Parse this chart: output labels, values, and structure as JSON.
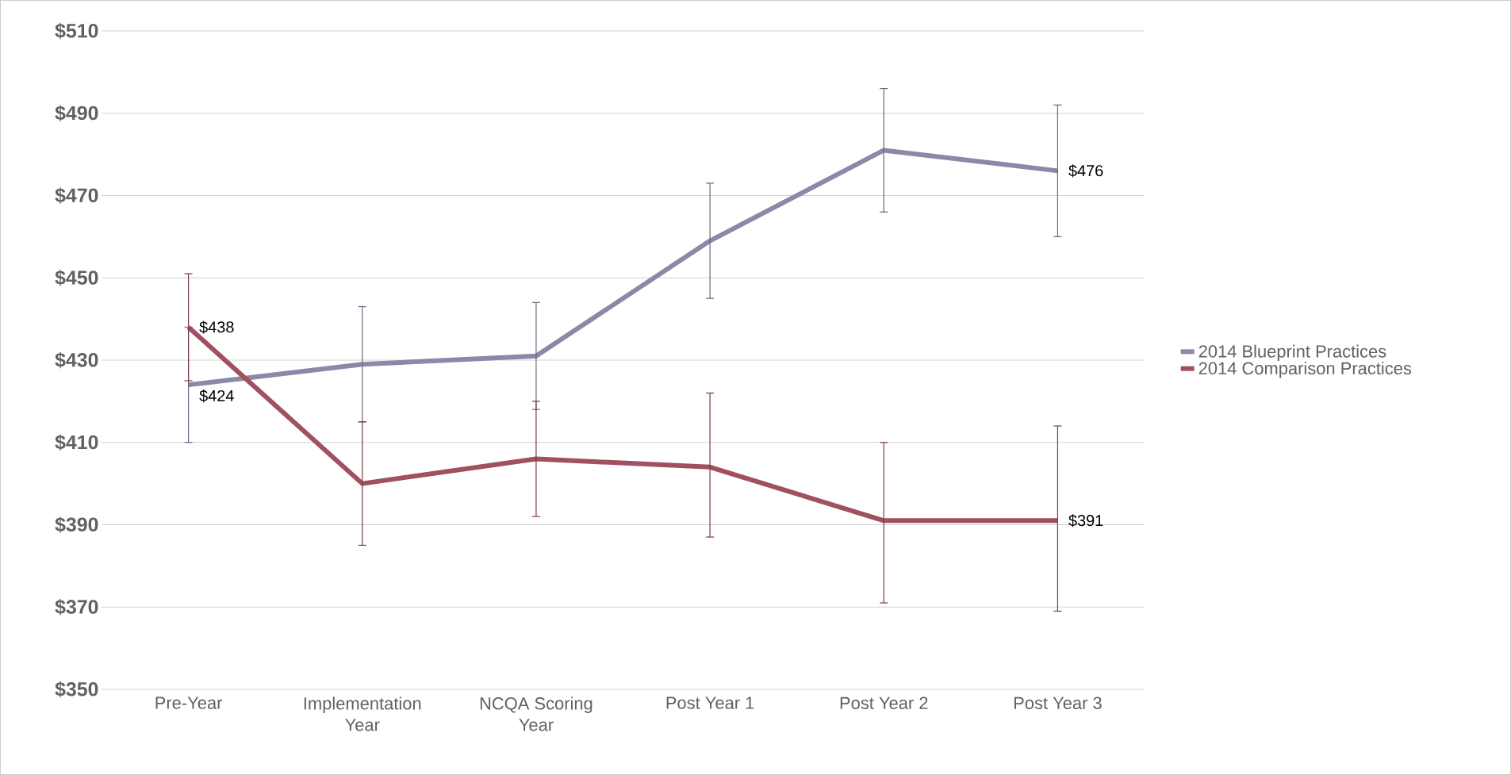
{
  "chart_data": {
    "type": "line",
    "categories": [
      "Pre-Year",
      "Implementation Year",
      "NCQA Scoring Year",
      "Post Year 1",
      "Post Year 2",
      "Post Year 3"
    ],
    "series": [
      {
        "name": "2014 Blueprint Practices",
        "color": "#8b89a8",
        "values": [
          424,
          429,
          431,
          459,
          481,
          476
        ],
        "errors": [
          [
            410,
            438
          ],
          [
            415,
            443
          ],
          [
            418,
            444
          ],
          [
            445,
            473
          ],
          [
            466,
            496
          ],
          [
            460,
            492
          ]
        ],
        "value_labels": [
          "$424",
          null,
          null,
          null,
          null,
          "$476"
        ]
      },
      {
        "name": "2014 Comparison Practices",
        "color": "#a0505e",
        "values": [
          438,
          400,
          406,
          404,
          391,
          391
        ],
        "errors": [
          [
            425,
            451
          ],
          [
            385,
            415
          ],
          [
            392,
            420
          ],
          [
            387,
            422
          ],
          [
            371,
            410
          ],
          [
            369,
            414
          ]
        ],
        "value_labels": [
          "$438",
          null,
          null,
          null,
          null,
          "$391"
        ]
      }
    ],
    "ylim": [
      350,
      510
    ],
    "yticks": [
      {
        "value": 350,
        "label": "$350"
      },
      {
        "value": 370,
        "label": "$370"
      },
      {
        "value": 390,
        "label": "$390"
      },
      {
        "value": 410,
        "label": "$410"
      },
      {
        "value": 430,
        "label": "$430"
      },
      {
        "value": 450,
        "label": "$450"
      },
      {
        "value": 470,
        "label": "$470"
      },
      {
        "value": 490,
        "label": "$490"
      },
      {
        "value": 510,
        "label": "$510"
      }
    ],
    "grid": "y",
    "legend": "right",
    "marker": "none",
    "line_style": "solid"
  }
}
